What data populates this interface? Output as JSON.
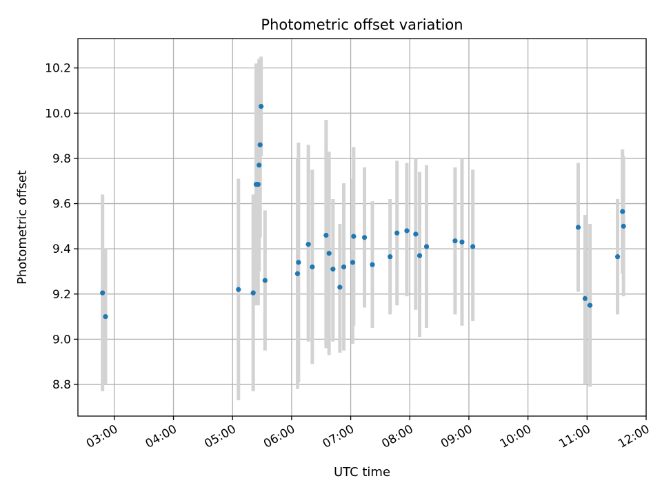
{
  "chart_data": {
    "type": "scatter",
    "title": "Photometric offset variation",
    "xlabel": "UTC time",
    "ylabel": "Photometric offset",
    "x_axis_kind": "time",
    "xlim": [
      "02:23",
      "12:00"
    ],
    "ylim": [
      8.66,
      10.33
    ],
    "x_ticks": [
      "03:00",
      "04:00",
      "05:00",
      "06:00",
      "07:00",
      "08:00",
      "09:00",
      "10:00",
      "11:00",
      "12:00"
    ],
    "y_ticks": [
      "8.8",
      "9.0",
      "9.2",
      "9.4",
      "9.6",
      "9.8",
      "10.0",
      "10.2"
    ],
    "grid": true,
    "series": [
      {
        "color": "#1f77b4",
        "errorbar_color": "#d3d3d3",
        "points": [
          {
            "x": "02:48",
            "y": 9.205,
            "ylo": 8.77,
            "yhi": 9.64
          },
          {
            "x": "02:51",
            "y": 9.1,
            "ylo": 8.8,
            "yhi": 9.4
          },
          {
            "x": "05:06",
            "y": 9.22,
            "ylo": 8.73,
            "yhi": 9.71
          },
          {
            "x": "05:21",
            "y": 9.205,
            "ylo": 8.77,
            "yhi": 9.64
          },
          {
            "x": "05:24",
            "y": 9.685,
            "ylo": 9.15,
            "yhi": 10.22
          },
          {
            "x": "05:26",
            "y": 9.685,
            "ylo": 9.15,
            "yhi": 10.22
          },
          {
            "x": "05:27",
            "y": 9.77,
            "ylo": 9.3,
            "yhi": 10.24
          },
          {
            "x": "05:28",
            "y": 9.86,
            "ylo": 9.45,
            "yhi": 10.24
          },
          {
            "x": "05:29",
            "y": 10.03,
            "ylo": 9.81,
            "yhi": 10.25
          },
          {
            "x": "05:33",
            "y": 9.26,
            "ylo": 8.95,
            "yhi": 9.57
          },
          {
            "x": "06:06",
            "y": 9.29,
            "ylo": 8.78,
            "yhi": 9.8
          },
          {
            "x": "06:07",
            "y": 9.34,
            "ylo": 8.81,
            "yhi": 9.87
          },
          {
            "x": "06:17",
            "y": 9.42,
            "ylo": 8.99,
            "yhi": 9.86
          },
          {
            "x": "06:21",
            "y": 9.32,
            "ylo": 8.89,
            "yhi": 9.75
          },
          {
            "x": "06:35",
            "y": 9.46,
            "ylo": 8.96,
            "yhi": 9.97
          },
          {
            "x": "06:38",
            "y": 9.38,
            "ylo": 8.93,
            "yhi": 9.83
          },
          {
            "x": "06:42",
            "y": 9.31,
            "ylo": 8.99,
            "yhi": 9.62
          },
          {
            "x": "06:49",
            "y": 9.23,
            "ylo": 8.94,
            "yhi": 9.51
          },
          {
            "x": "06:53",
            "y": 9.32,
            "ylo": 8.95,
            "yhi": 9.69
          },
          {
            "x": "07:02",
            "y": 9.34,
            "ylo": 8.98,
            "yhi": 9.71
          },
          {
            "x": "07:03",
            "y": 9.455,
            "ylo": 9.06,
            "yhi": 9.85
          },
          {
            "x": "07:14",
            "y": 9.45,
            "ylo": 9.14,
            "yhi": 9.76
          },
          {
            "x": "07:22",
            "y": 9.33,
            "ylo": 9.05,
            "yhi": 9.61
          },
          {
            "x": "07:40",
            "y": 9.365,
            "ylo": 9.11,
            "yhi": 9.62
          },
          {
            "x": "07:47",
            "y": 9.47,
            "ylo": 9.15,
            "yhi": 9.79
          },
          {
            "x": "07:57",
            "y": 9.48,
            "ylo": 9.19,
            "yhi": 9.78
          },
          {
            "x": "08:06",
            "y": 9.465,
            "ylo": 9.13,
            "yhi": 9.8
          },
          {
            "x": "08:10",
            "y": 9.37,
            "ylo": 9.01,
            "yhi": 9.74
          },
          {
            "x": "08:17",
            "y": 9.41,
            "ylo": 9.05,
            "yhi": 9.77
          },
          {
            "x": "08:46",
            "y": 9.435,
            "ylo": 9.11,
            "yhi": 9.76
          },
          {
            "x": "08:53",
            "y": 9.43,
            "ylo": 9.06,
            "yhi": 9.8
          },
          {
            "x": "09:04",
            "y": 9.41,
            "ylo": 9.08,
            "yhi": 9.75
          },
          {
            "x": "10:51",
            "y": 9.495,
            "ylo": 9.21,
            "yhi": 9.78
          },
          {
            "x": "10:58",
            "y": 9.18,
            "ylo": 8.8,
            "yhi": 9.55
          },
          {
            "x": "11:03",
            "y": 9.15,
            "ylo": 8.79,
            "yhi": 9.51
          },
          {
            "x": "11:31",
            "y": 9.365,
            "ylo": 9.11,
            "yhi": 9.62
          },
          {
            "x": "11:36",
            "y": 9.565,
            "ylo": 9.29,
            "yhi": 9.84
          },
          {
            "x": "11:37",
            "y": 9.5,
            "ylo": 9.19,
            "yhi": 9.81
          }
        ]
      }
    ]
  }
}
